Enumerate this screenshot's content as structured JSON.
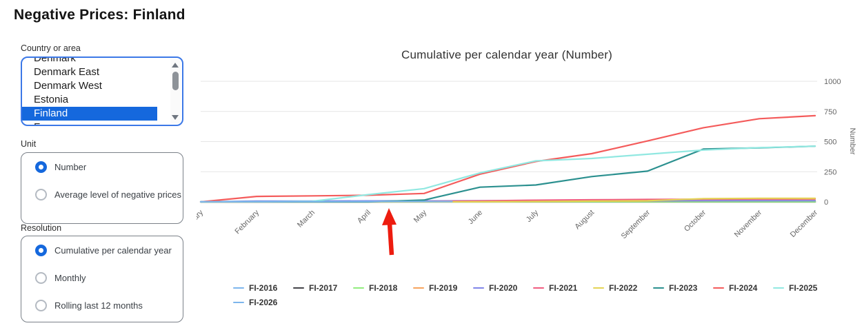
{
  "page_title": "Negative Prices: Finland",
  "colors": {
    "accent_blue": "#1568dd",
    "listbox_border": "#3b78e7",
    "annotation_red": "#ed1c0f",
    "grid": "#e6e6e6",
    "axis_text": "#666666",
    "legend_text": "#333333"
  },
  "sidebar": {
    "country": {
      "label": "Country or area",
      "visible_options": [
        "Denmark",
        "Denmark East",
        "Denmark West",
        "Estonia",
        "Finland",
        "France"
      ],
      "selected": "Finland"
    },
    "unit": {
      "label": "Unit",
      "options": [
        {
          "label": "Number",
          "selected": true
        },
        {
          "label": "Average level of negative prices",
          "selected": false
        }
      ]
    },
    "resolution": {
      "label": "Resolution",
      "options": [
        {
          "label": "Cumulative per calendar year",
          "selected": true
        },
        {
          "label": "Monthly",
          "selected": false
        },
        {
          "label": "Rolling last 12 months",
          "selected": false
        }
      ]
    }
  },
  "chart_data": {
    "type": "line",
    "title": "Cumulative per calendar year (Number)",
    "x_categories": [
      "January",
      "February",
      "March",
      "April",
      "May",
      "June",
      "July",
      "August",
      "September",
      "October",
      "November",
      "December"
    ],
    "xlabel": "",
    "ylabel": "Number",
    "ylim": [
      0,
      1000
    ],
    "yticks": [
      0,
      250,
      500,
      750,
      1000
    ],
    "grid": true,
    "legend_position": "bottom",
    "series": [
      {
        "name": "FI-2016",
        "color": "#7cb5ec",
        "values": [
          0,
          0,
          0,
          0,
          1,
          1,
          2,
          2,
          2,
          2,
          2,
          2
        ]
      },
      {
        "name": "FI-2017",
        "color": "#434348",
        "values": [
          0,
          0,
          0,
          0,
          0,
          0,
          0,
          0,
          0,
          0,
          0,
          0
        ]
      },
      {
        "name": "FI-2018",
        "color": "#90ed7d",
        "values": [
          0,
          0,
          0,
          0,
          0,
          0,
          1,
          1,
          1,
          1,
          1,
          1
        ]
      },
      {
        "name": "FI-2019",
        "color": "#f7a35c",
        "values": [
          0,
          0,
          0,
          0,
          1,
          2,
          4,
          6,
          8,
          10,
          13,
          15
        ]
      },
      {
        "name": "FI-2020",
        "color": "#8085e9",
        "values": [
          0,
          6,
          7,
          8,
          8,
          9,
          9,
          9,
          9,
          10,
          10,
          10
        ]
      },
      {
        "name": "FI-2021",
        "color": "#f15c80",
        "values": [
          0,
          0,
          1,
          2,
          4,
          8,
          14,
          17,
          20,
          22,
          24,
          26
        ]
      },
      {
        "name": "FI-2022",
        "color": "#e4d354",
        "values": [
          0,
          0,
          0,
          0,
          0,
          1,
          3,
          6,
          10,
          26,
          30,
          30
        ]
      },
      {
        "name": "FI-2023",
        "color": "#2b908f",
        "values": [
          0,
          0,
          0,
          0,
          15,
          122,
          140,
          210,
          255,
          438,
          448,
          462
        ]
      },
      {
        "name": "FI-2024",
        "color": "#f45b5b",
        "values": [
          0,
          45,
          50,
          55,
          70,
          230,
          335,
          400,
          505,
          615,
          690,
          715
        ]
      },
      {
        "name": "FI-2025",
        "color": "#91e8e1",
        "values": [
          0,
          1,
          5,
          60,
          110,
          240,
          340,
          360,
          395,
          430,
          450,
          462
        ]
      },
      {
        "name": "FI-2026",
        "color": "#7cb5ec",
        "x": [
          0,
          1,
          2,
          3,
          4,
          4.5
        ],
        "values": [
          1,
          2,
          2,
          3,
          3,
          3
        ]
      }
    ],
    "annotation": {
      "shape": "arrow",
      "color": "#ed1c0f",
      "x_month": 3.37,
      "points_to_value": 0,
      "description": "red arrow pointing up at the zero line between April and May"
    }
  }
}
